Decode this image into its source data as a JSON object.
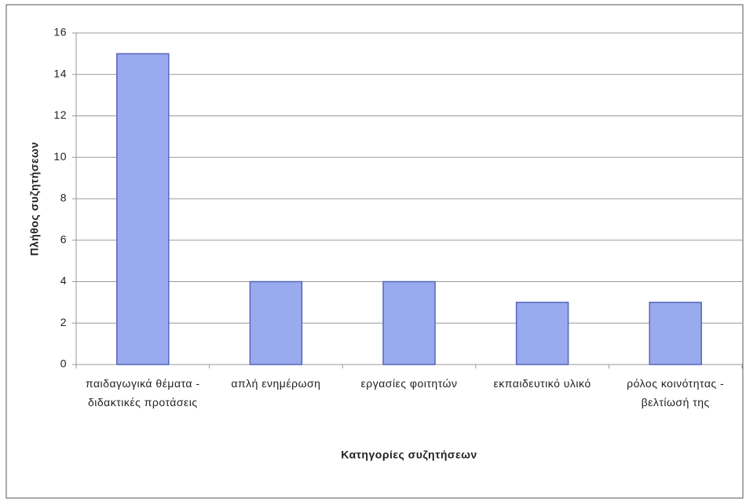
{
  "chart_data": {
    "type": "bar",
    "categories": [
      "παιδαγωγικά θέματα - διδακτικές προτάσεις",
      "απλή ενημέρωση",
      "εργασίες φοιτητών",
      "εκπαιδευτικό υλικό",
      "ρόλος κοινότητας - βελτίωσή της"
    ],
    "values": [
      15,
      4,
      4,
      3,
      3
    ],
    "color": "#9aaaee",
    "x_label": "Κατηγορίες συζητήσεων",
    "y_label": "Πλήθος συζητήσεων",
    "ylim": [
      0,
      16
    ],
    "yticks": [
      0,
      2,
      4,
      6,
      8,
      10,
      12,
      14,
      16
    ],
    "grid": true
  }
}
